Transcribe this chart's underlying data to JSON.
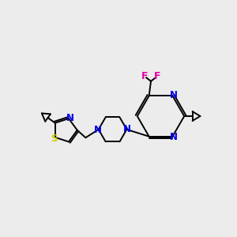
{
  "bg_color": "#ececec",
  "bond_color": "#000000",
  "N_color": "#0000ee",
  "S_color": "#cccc00",
  "F_color": "#e800a8",
  "figsize": [
    3.0,
    3.0
  ],
  "dpi": 100,
  "lw": 1.4,
  "fs": 8.5,
  "xlim": [
    0,
    10
  ],
  "ylim": [
    0,
    10
  ]
}
